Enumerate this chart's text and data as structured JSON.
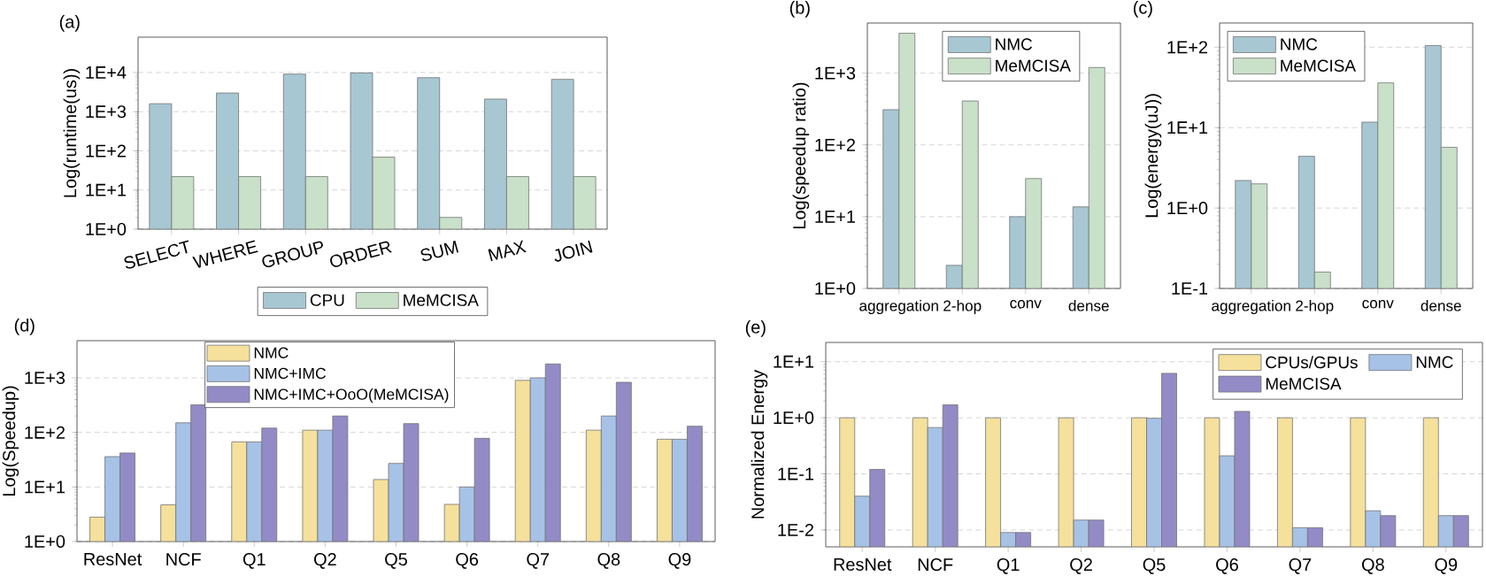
{
  "chart_data": [
    {
      "type": "bar",
      "title": "(a)",
      "ylabel": "Log(runtime(us))",
      "categories": [
        "SELECT",
        "WHERE",
        "GROUP",
        "ORDER",
        "SUM",
        "MAX",
        "JOIN"
      ],
      "series": [
        {
          "name": "CPU",
          "color": "#a7c7d3",
          "values": [
            1600,
            3000,
            9100,
            9800,
            7400,
            2100,
            6700
          ]
        },
        {
          "name": "MeMCISA",
          "color": "#c9e0c9",
          "values": [
            22,
            22,
            22,
            69,
            2,
            22,
            22
          ]
        }
      ],
      "log": true,
      "ylim": [
        1,
        80000
      ],
      "yticks": [
        {
          "value": 1,
          "label": "1E+0"
        },
        {
          "value": 10,
          "label": "1E+1"
        },
        {
          "value": 100,
          "label": "1E+2"
        },
        {
          "value": 1000,
          "label": "1E+3"
        },
        {
          "value": 10000,
          "label": "1E+4"
        }
      ],
      "grid": "y",
      "legend": "bottom"
    },
    {
      "type": "bar",
      "title": "(b)",
      "ylabel": "Log(speedup ratio)",
      "categories": [
        "aggregation",
        "2-hop",
        "conv",
        "dense"
      ],
      "series": [
        {
          "name": "NMC",
          "color": "#a7c7d3",
          "values": [
            310,
            2.1,
            10,
            13.7
          ]
        },
        {
          "name": "MeMCISA",
          "color": "#c9e0c9",
          "values": [
            3600,
            410,
            34,
            1200
          ]
        }
      ],
      "log": true,
      "ylim": [
        1,
        5000
      ],
      "yticks": [
        {
          "value": 1,
          "label": "1E+0"
        },
        {
          "value": 10,
          "label": "1E+1"
        },
        {
          "value": 100,
          "label": "1E+2"
        },
        {
          "value": 1000,
          "label": "1E+3"
        }
      ],
      "grid": "y",
      "legend": "top right"
    },
    {
      "type": "bar",
      "title": "(c)",
      "ylabel": "Log(energy(uJ))",
      "categories": [
        "aggregation",
        "2-hop",
        "conv",
        "dense"
      ],
      "series": [
        {
          "name": "NMC",
          "color": "#a7c7d3",
          "values": [
            2.2,
            4.4,
            11.7,
            105
          ]
        },
        {
          "name": "MeMCISA",
          "color": "#c9e0c9",
          "values": [
            2.0,
            0.16,
            36,
            5.7
          ]
        }
      ],
      "log": true,
      "ylim": [
        0.1,
        200
      ],
      "yticks": [
        {
          "value": 0.1,
          "label": "1E-1"
        },
        {
          "value": 1,
          "label": "1E+0"
        },
        {
          "value": 10,
          "label": "1E+1"
        },
        {
          "value": 100,
          "label": "1E+2"
        }
      ],
      "grid": "y",
      "legend": "top left"
    },
    {
      "type": "bar",
      "title": "(d)",
      "ylabel": "Log(Speedup)",
      "categories": [
        "ResNet",
        "NCF",
        "Q1",
        "Q2",
        "Q5",
        "Q6",
        "Q7",
        "Q8",
        "Q9"
      ],
      "series": [
        {
          "name": "NMC",
          "color": "#f5e09c",
          "values": [
            2.8,
            4.7,
            67,
            110,
            13.7,
            4.8,
            900,
            110,
            75
          ]
        },
        {
          "name": "NMC+IMC",
          "color": "#a6c2e6",
          "values": [
            36,
            150,
            67,
            110,
            27,
            10,
            1000,
            200,
            75
          ]
        },
        {
          "name": "NMC+IMC+OoO(MeMCISA)",
          "color": "#928bc6",
          "values": [
            42,
            320,
            120,
            200,
            145,
            78,
            1800,
            830,
            130
          ]
        }
      ],
      "log": true,
      "ylim": [
        1,
        4800
      ],
      "yticks": [
        {
          "value": 1,
          "label": "1E+0"
        },
        {
          "value": 10,
          "label": "1E+1"
        },
        {
          "value": 100,
          "label": "1E+2"
        },
        {
          "value": 1000,
          "label": "1E+3"
        }
      ],
      "grid": "y",
      "legend": "top"
    },
    {
      "type": "bar",
      "title": "(e)",
      "ylabel": "Normalized Energy",
      "categories": [
        "ResNet",
        "NCF",
        "Q1",
        "Q2",
        "Q5",
        "Q6",
        "Q7",
        "Q8",
        "Q9"
      ],
      "series": [
        {
          "name": "CPUs/GPUs",
          "color": "#f5e09c",
          "values": [
            1,
            1,
            1,
            1,
            1,
            1,
            1,
            1,
            1
          ]
        },
        {
          "name": "NMC",
          "color": "#a6c2e6",
          "values": [
            0.04,
            0.67,
            0.009,
            0.015,
            0.98,
            0.21,
            0.011,
            0.022,
            0.018
          ]
        },
        {
          "name": "MeMCISA",
          "color": "#928bc6",
          "values": [
            0.12,
            1.7,
            0.009,
            0.015,
            6.2,
            1.3,
            0.011,
            0.018,
            0.018
          ]
        }
      ],
      "log": true,
      "ylim": [
        0.005,
        22
      ],
      "yticks": [
        {
          "value": 0.01,
          "label": "1E-2"
        },
        {
          "value": 0.1,
          "label": "1E-1"
        },
        {
          "value": 1,
          "label": "1E+0"
        },
        {
          "value": 10,
          "label": "1E+1"
        }
      ],
      "grid": "y",
      "legend": "top right"
    }
  ]
}
